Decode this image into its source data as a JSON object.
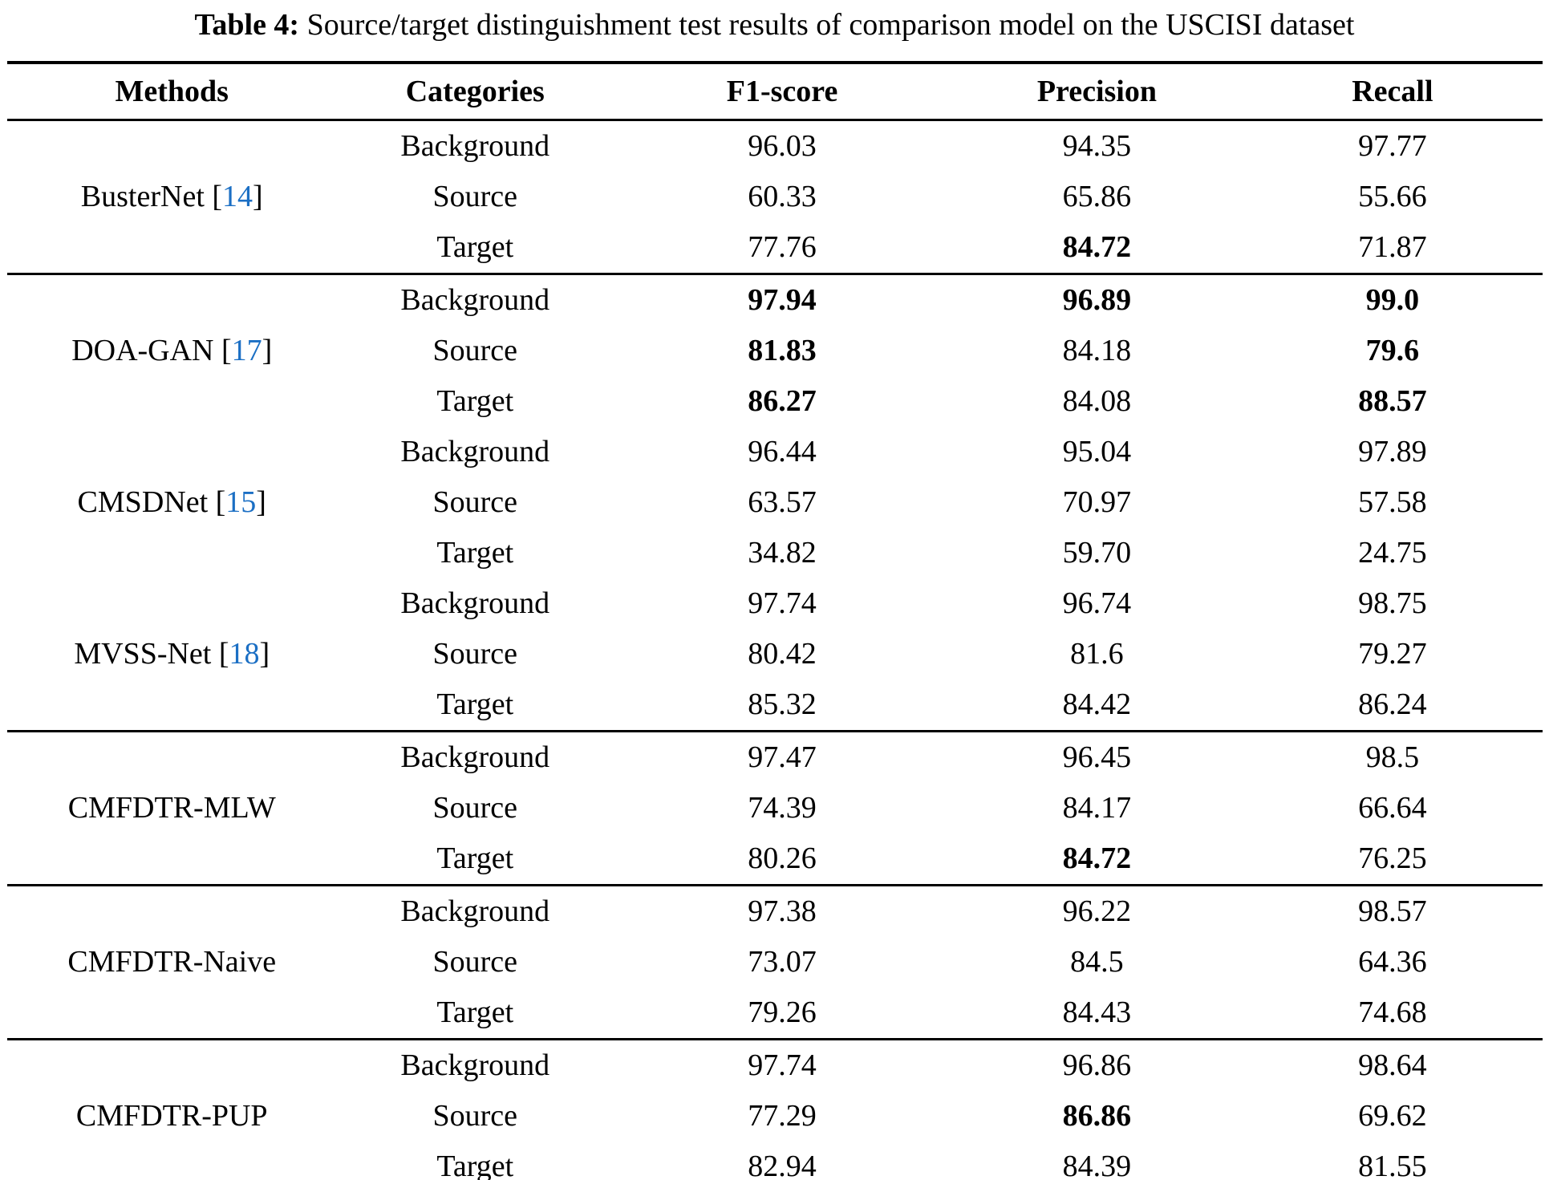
{
  "caption": {
    "label": "Table 4:",
    "text": " Source/target distinguishment test results of comparison model on the USCISI dataset"
  },
  "columns": [
    "Methods",
    "Categories",
    "F1-score",
    "Precision",
    "Recall"
  ],
  "colors": {
    "citation_link": "#1b6fc4",
    "text": "#000000",
    "rule": "#000000"
  },
  "groups": [
    {
      "method": "BusterNet",
      "citation": "14",
      "rule_before": false,
      "rows": [
        {
          "category": "Background",
          "f1": "96.03",
          "precision": "94.35",
          "recall": "97.77",
          "bold": []
        },
        {
          "category": "Source",
          "f1": "60.33",
          "precision": "65.86",
          "recall": "55.66",
          "bold": []
        },
        {
          "category": "Target",
          "f1": "77.76",
          "precision": "84.72",
          "recall": "71.87",
          "bold": [
            "precision"
          ]
        }
      ]
    },
    {
      "method": "DOA-GAN",
      "citation": "17",
      "rule_before": true,
      "rows": [
        {
          "category": "Background",
          "f1": "97.94",
          "precision": "96.89",
          "recall": "99.0",
          "bold": [
            "f1",
            "precision",
            "recall"
          ]
        },
        {
          "category": "Source",
          "f1": "81.83",
          "precision": "84.18",
          "recall": "79.6",
          "bold": [
            "f1",
            "recall"
          ]
        },
        {
          "category": "Target",
          "f1": "86.27",
          "precision": "84.08",
          "recall": "88.57",
          "bold": [
            "f1",
            "recall"
          ]
        }
      ]
    },
    {
      "method": "CMSDNet",
      "citation": "15",
      "rule_before": false,
      "rows": [
        {
          "category": "Background",
          "f1": "96.44",
          "precision": "95.04",
          "recall": "97.89",
          "bold": []
        },
        {
          "category": "Source",
          "f1": "63.57",
          "precision": "70.97",
          "recall": "57.58",
          "bold": []
        },
        {
          "category": "Target",
          "f1": "34.82",
          "precision": "59.70",
          "recall": "24.75",
          "bold": []
        }
      ]
    },
    {
      "method": "MVSS-Net",
      "citation": "18",
      "rule_before": false,
      "rows": [
        {
          "category": "Background",
          "f1": "97.74",
          "precision": "96.74",
          "recall": "98.75",
          "bold": []
        },
        {
          "category": "Source",
          "f1": "80.42",
          "precision": "81.6",
          "recall": "79.27",
          "bold": []
        },
        {
          "category": "Target",
          "f1": "85.32",
          "precision": "84.42",
          "recall": "86.24",
          "bold": []
        }
      ]
    },
    {
      "method": "CMFDTR-MLW",
      "citation": null,
      "rule_before": true,
      "rows": [
        {
          "category": "Background",
          "f1": "97.47",
          "precision": "96.45",
          "recall": "98.5",
          "bold": []
        },
        {
          "category": "Source",
          "f1": "74.39",
          "precision": "84.17",
          "recall": "66.64",
          "bold": []
        },
        {
          "category": "Target",
          "f1": "80.26",
          "precision": "84.72",
          "recall": "76.25",
          "bold": [
            "precision"
          ]
        }
      ]
    },
    {
      "method": "CMFDTR-Naive",
      "citation": null,
      "rule_before": true,
      "rows": [
        {
          "category": "Background",
          "f1": "97.38",
          "precision": "96.22",
          "recall": "98.57",
          "bold": []
        },
        {
          "category": "Source",
          "f1": "73.07",
          "precision": "84.5",
          "recall": "64.36",
          "bold": []
        },
        {
          "category": "Target",
          "f1": "79.26",
          "precision": "84.43",
          "recall": "74.68",
          "bold": []
        }
      ]
    },
    {
      "method": "CMFDTR-PUP",
      "citation": null,
      "rule_before": true,
      "rows": [
        {
          "category": "Background",
          "f1": "97.74",
          "precision": "96.86",
          "recall": "98.64",
          "bold": []
        },
        {
          "category": "Source",
          "f1": "77.29",
          "precision": "86.86",
          "recall": "69.62",
          "bold": [
            "precision"
          ]
        },
        {
          "category": "Target",
          "f1": "82.94",
          "precision": "84.39",
          "recall": "81.55",
          "bold": []
        }
      ]
    }
  ]
}
